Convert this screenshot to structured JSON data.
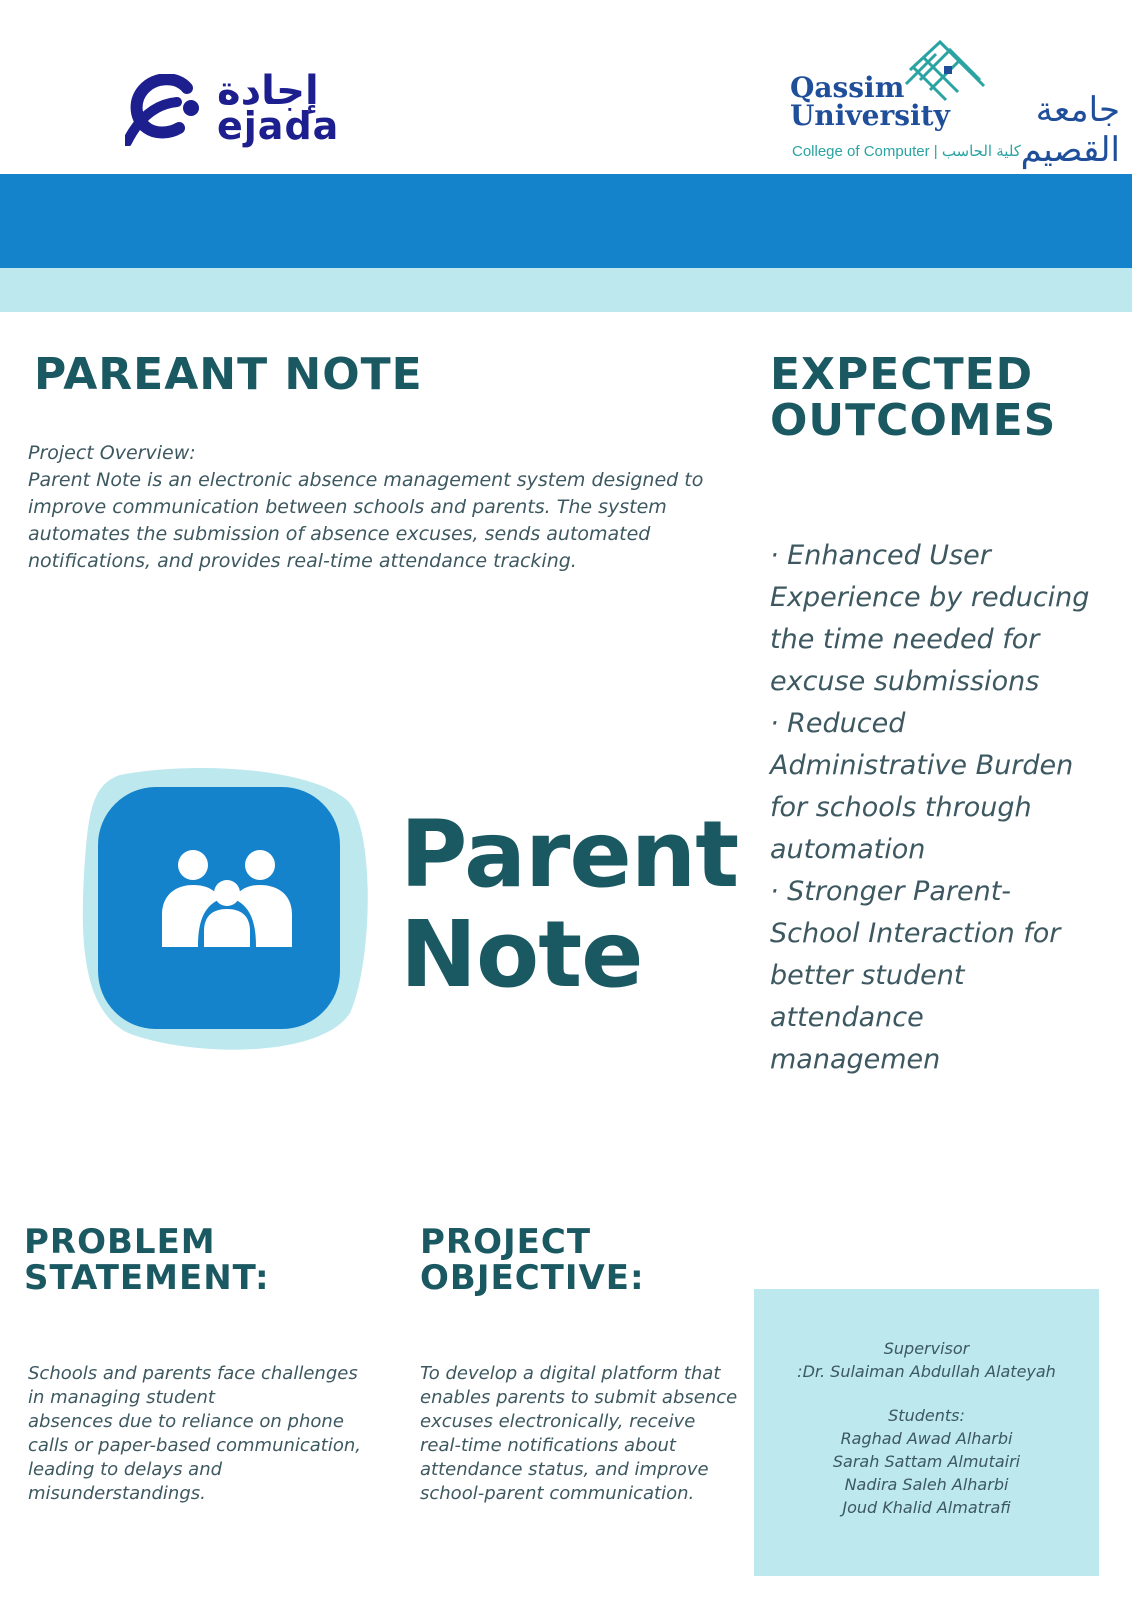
{
  "header": {
    "ejada": {
      "arabic": "إجادة",
      "english": "ejada"
    },
    "university": {
      "name_line1": "Qassim",
      "name_line2": "University",
      "arabic_name": "جامعة القصيم",
      "college": "College of Computer  |  كلية الحاسب"
    },
    "band_colors": {
      "primary": "#1583cc",
      "secondary": "#bce8ee"
    }
  },
  "title": "PAREANT NOTE",
  "overview": {
    "label": "Project Overview:",
    "body": "Parent Note is an electronic absence management system designed to improve communication between schools and parents. The system automates the submission of absence excuses, sends automated notifications, and provides real-time attendance tracking."
  },
  "app_logo": {
    "line1": "Parent",
    "line2": "Note",
    "icon": "family-icon"
  },
  "outcomes": {
    "title": "EXPECTED OUTCOMES",
    "items": [
      "· Enhanced User Experience by reducing the time needed for excuse submissions",
      "· Reduced Administrative Burden for schools through automation",
      "· Stronger Parent-School Interaction for better student attendance managemen"
    ]
  },
  "problem": {
    "title": "PROBLEM STATEMENT:",
    "body_line1": "Schools and parents face challenges in managing student",
    "body_line2": "absences due to reliance on phone calls or paper-based communication, leading to delays and misunderstandings."
  },
  "objective": {
    "title": "PROJECT OBJECTIVE:",
    "body": "To develop a digital platform that enables parents to submit absence excuses electronically, receive real-time notifications about attendance status, and improve school-parent communication."
  },
  "team": {
    "supervisor_label": "Supervisor",
    "supervisor_name": ":Dr. Sulaiman Abdullah Alateyah",
    "students_label": "Students:",
    "students": [
      "Raghad Awad Alharbi",
      "Sarah Sattam Almutairi",
      "Nadira Saleh Alharbi",
      "Joud Khalid Almatrafi"
    ]
  }
}
